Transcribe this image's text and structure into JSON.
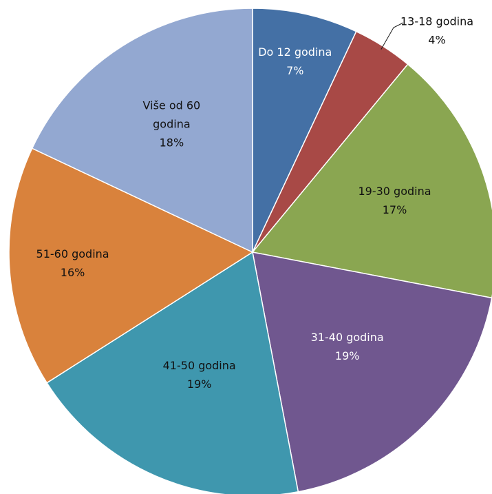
{
  "chart_data": {
    "type": "pie",
    "title": "",
    "slices": [
      {
        "label": "Do 12 godina",
        "value": 7,
        "value_label": "7%",
        "color": "#4470A5",
        "label_color": "#ffffff"
      },
      {
        "label": "13-18 godina",
        "value": 4,
        "value_label": "4%",
        "color": "#A84946",
        "label_color": "#111111"
      },
      {
        "label": "19-30 godina",
        "value": 17,
        "value_label": "17%",
        "color": "#8AA651",
        "label_color": "#111111"
      },
      {
        "label": "31-40 godina",
        "value": 19,
        "value_label": "19%",
        "color": "#70578F",
        "label_color": "#ffffff"
      },
      {
        "label": "41-50 godina",
        "value": 19,
        "value_label": "19%",
        "color": "#3F97AE",
        "label_color": "#111111"
      },
      {
        "label": "51-60 godina",
        "value": 16,
        "value_label": "16%",
        "color": "#D9823C",
        "label_color": "#111111"
      },
      {
        "label": "Više od 60 godina",
        "value": 18,
        "value_label": "18%",
        "color": "#93A8D1",
        "label_color": "#111111"
      }
    ],
    "start_angle": "12 o'clock",
    "direction": "clockwise",
    "legend": "none"
  }
}
